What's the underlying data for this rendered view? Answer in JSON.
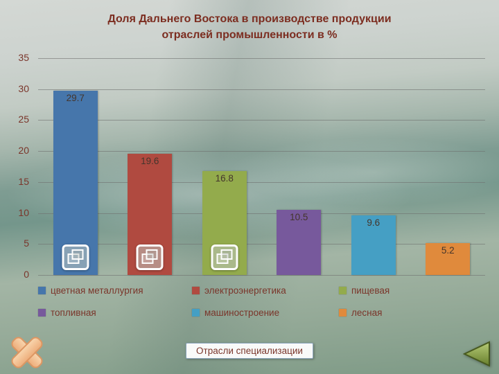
{
  "slide": {
    "title_line1": "Доля Дальнего Востока в производстве продукции",
    "title_line2": "отраслей промышленности в %",
    "footer_box": "Отрасли специализации"
  },
  "chart_data": {
    "type": "bar",
    "title": "Доля Дальнего Востока в производстве продукции отраслей промышленности в %",
    "categories": [
      "цветная металлургия",
      "электроэнергетика",
      "пищевая",
      "топливная",
      "машиностроение",
      "лесная"
    ],
    "values": [
      29.7,
      19.6,
      16.8,
      10.5,
      9.6,
      5.2
    ],
    "colors": [
      "#4676ab",
      "#b04a40",
      "#93ab4c",
      "#77599c",
      "#459fc4",
      "#e08a3c"
    ],
    "xlabel": "",
    "ylabel": "",
    "ylim": [
      0,
      35
    ],
    "yticks": [
      0,
      5,
      10,
      15,
      20,
      25,
      30,
      35
    ],
    "grid": true,
    "legend_position": "bottom",
    "icon_bars": [
      0,
      1,
      2
    ],
    "bar_icon": "cascade-windows-icon"
  },
  "nav": {
    "back_arrow_fill_light": "#b7cc77",
    "back_arrow_fill_dark": "#667e2c",
    "back_arrow_stroke": "#47591f",
    "x_icon_fill": "#f3c49d",
    "x_icon_stroke": "#dd9662"
  }
}
